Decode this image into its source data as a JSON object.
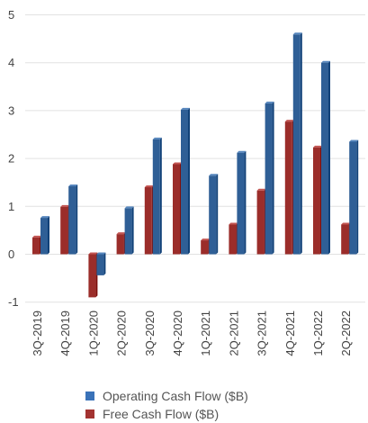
{
  "chart_data": {
    "type": "bar",
    "categories": [
      "3Q-2019",
      "4Q-2019",
      "1Q-2020",
      "2Q-2020",
      "3Q-2020",
      "4Q-2020",
      "1Q-2021",
      "2Q-2021",
      "3Q-2021",
      "4Q-2021",
      "1Q-2022",
      "2Q-2022"
    ],
    "series": [
      {
        "name": "Free Cash Flow ($B)",
        "color": "#9b2d2a",
        "values": [
          0.35,
          0.99,
          -0.9,
          0.42,
          1.4,
          1.88,
          0.29,
          0.62,
          1.33,
          2.77,
          2.23,
          0.62
        ]
      },
      {
        "name": "Operating Cash Flow ($B)",
        "color": "#2f5f96",
        "values": [
          0.76,
          1.42,
          -0.44,
          0.96,
          2.4,
          3.02,
          1.64,
          2.12,
          3.15,
          4.59,
          4.0,
          2.35
        ]
      }
    ],
    "yticks": [
      "-1",
      "0",
      "1",
      "2",
      "3",
      "4",
      "5"
    ],
    "ylim": [
      -1,
      5
    ],
    "grid": true,
    "legend_placement": "bottom",
    "legend": [
      {
        "label": "Operating Cash Flow ($B)",
        "color": "#3a72b8"
      },
      {
        "label": "Free Cash Flow ($B)",
        "color": "#a33331"
      }
    ]
  }
}
